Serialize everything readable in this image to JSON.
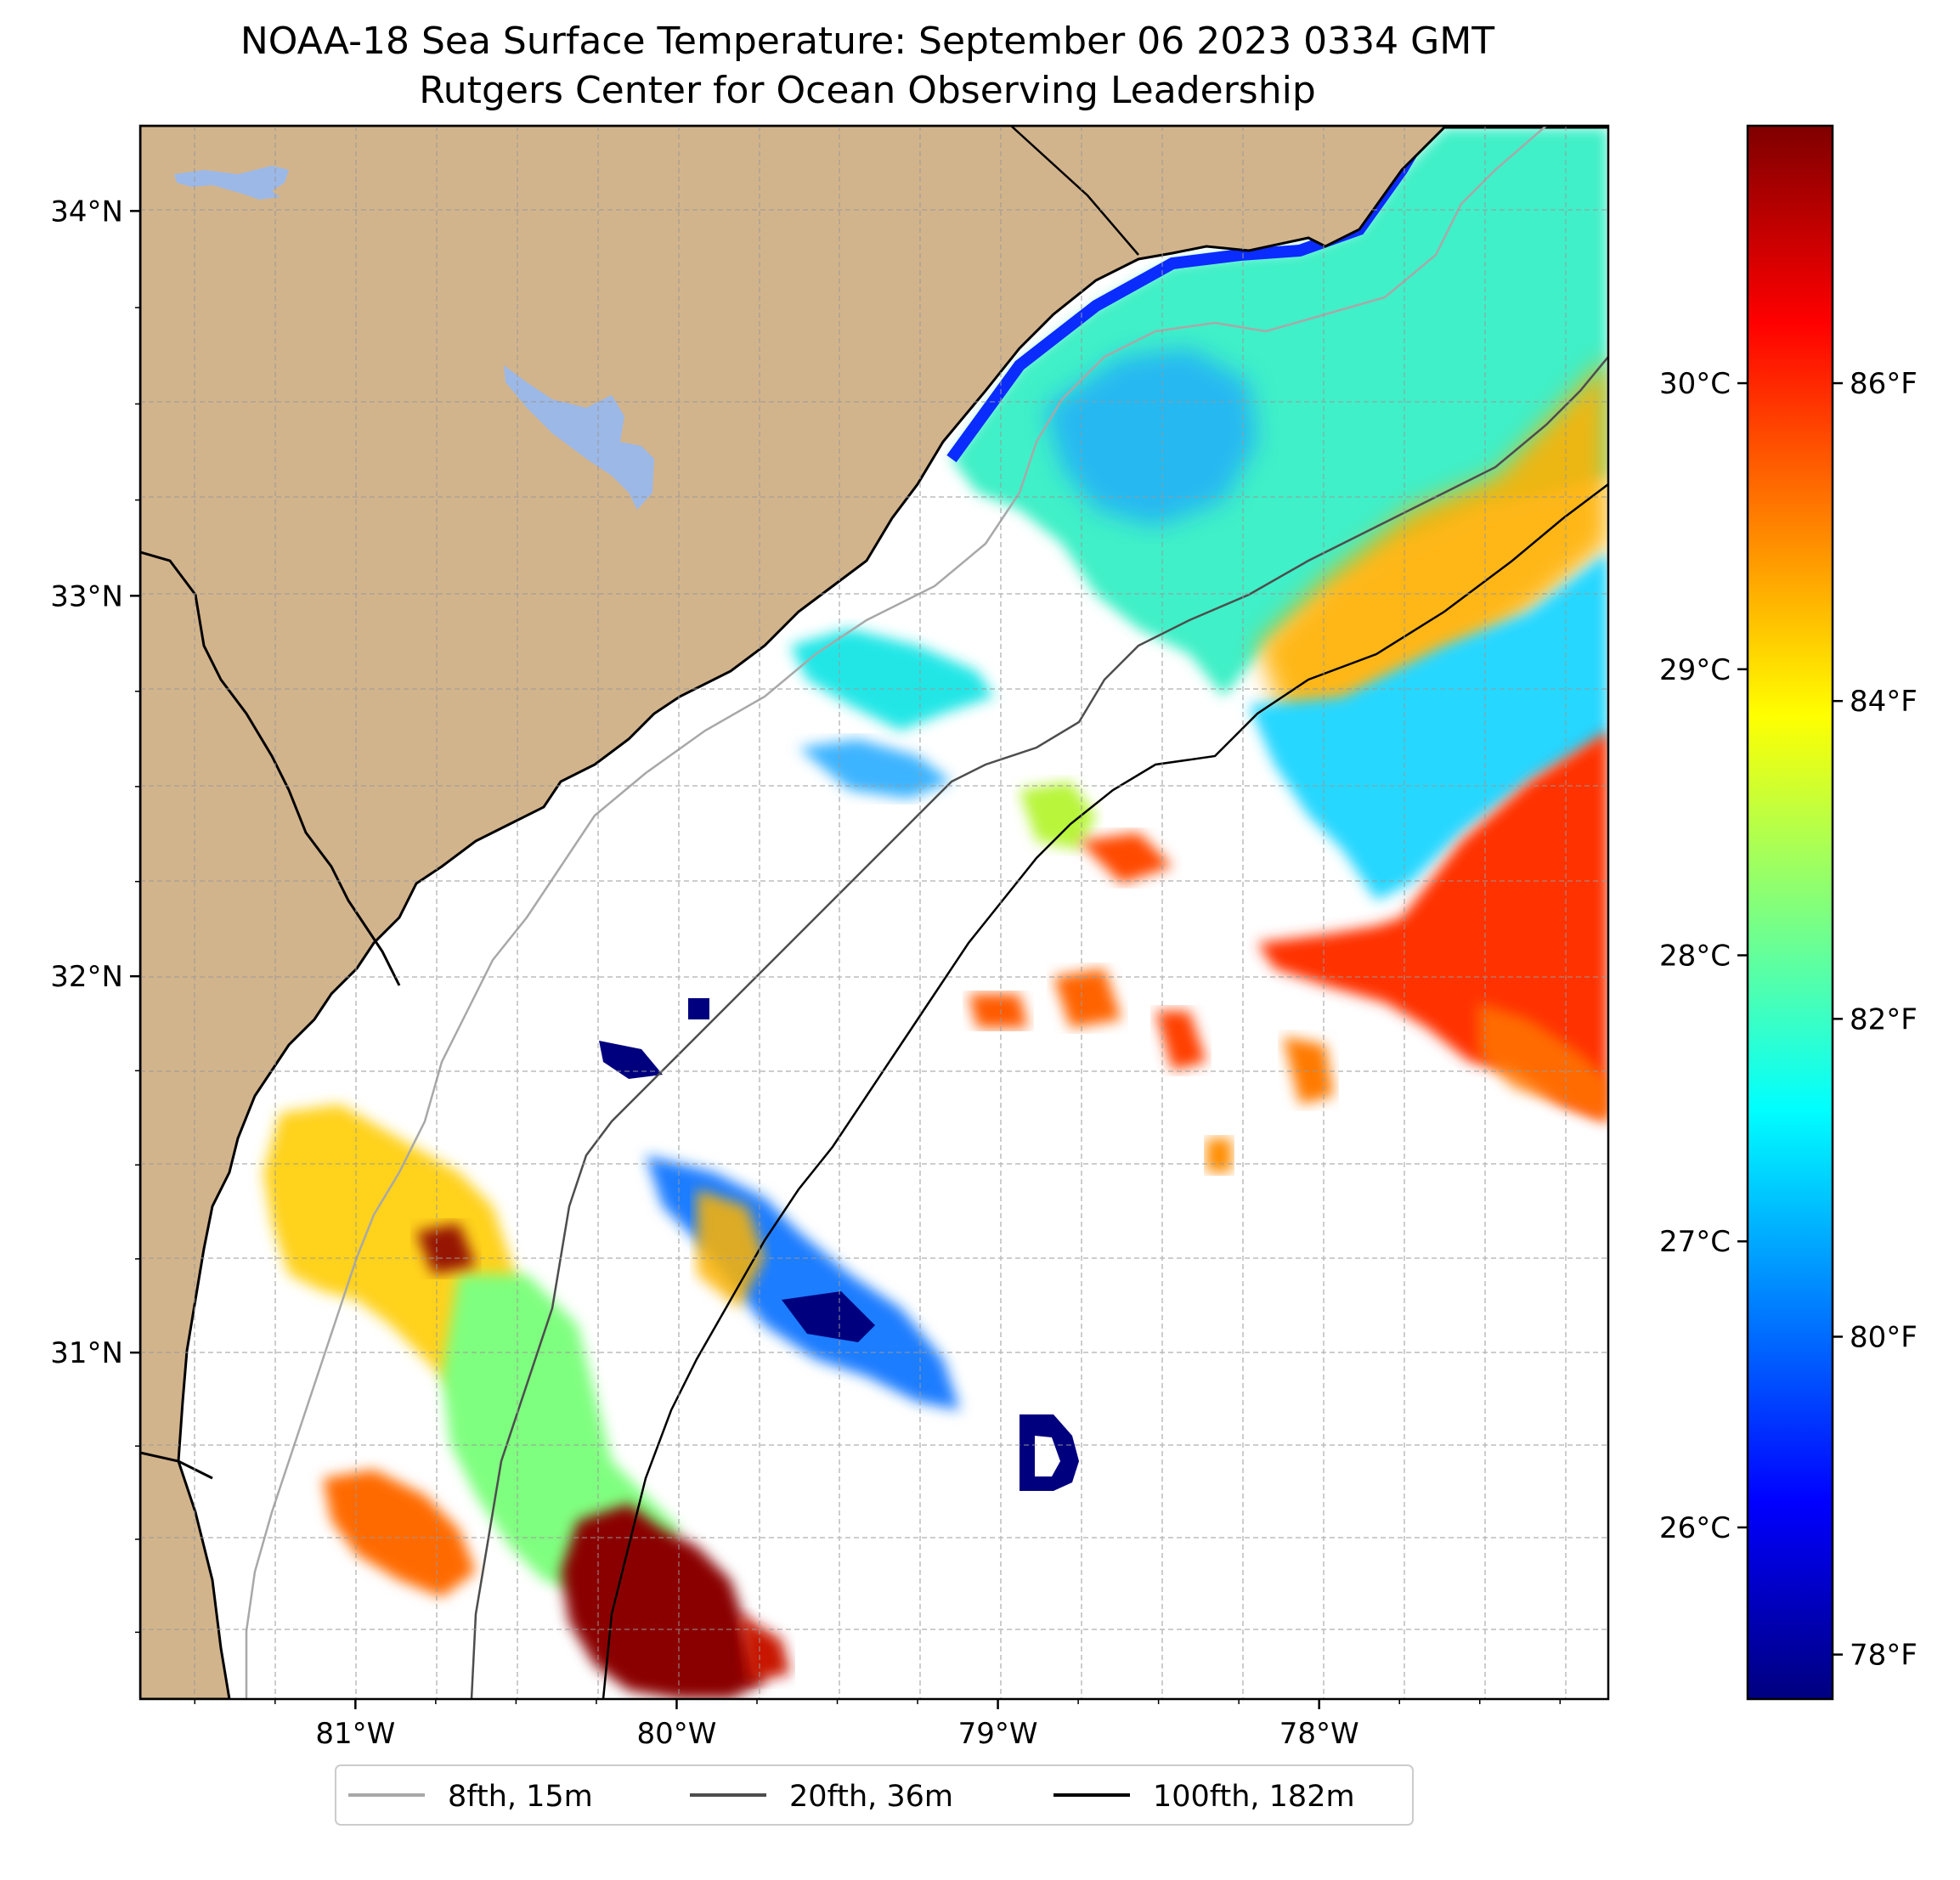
{
  "title": {
    "line1": "NOAA-18 Sea Surface Temperature: September 06 2023 0334 GMT",
    "line2": "Rutgers Center for Ocean Observing Leadership"
  },
  "map": {
    "lon_range": [
      -81.67,
      -77.1
    ],
    "lat_range": [
      30.07,
      34.22
    ],
    "lat_ticks": [
      {
        "value": 34,
        "label": "34°N"
      },
      {
        "value": 33,
        "label": "33°N"
      },
      {
        "value": 32,
        "label": "32°N"
      },
      {
        "value": 31,
        "label": "31°N"
      }
    ],
    "lon_ticks": [
      {
        "value": -81,
        "label": "81°W"
      },
      {
        "value": -80,
        "label": "80°W"
      },
      {
        "value": -79,
        "label": "79°W"
      },
      {
        "value": -78,
        "label": "78°W"
      }
    ],
    "land_color": "#d2b48c",
    "water_color": "#9cb8e6",
    "no_data_color": "#ffffff",
    "grid_style": "dashed gray"
  },
  "colorbar": {
    "celsius_range": [
      25.4,
      30.9
    ],
    "celsius_ticks": [
      {
        "value": 30,
        "label": "30°C"
      },
      {
        "value": 29,
        "label": "29°C"
      },
      {
        "value": 28,
        "label": "28°C"
      },
      {
        "value": 27,
        "label": "27°C"
      },
      {
        "value": 26,
        "label": "26°C"
      }
    ],
    "fahrenheit_ticks": [
      {
        "value": 86,
        "label": "86°F"
      },
      {
        "value": 84,
        "label": "84°F"
      },
      {
        "value": 82,
        "label": "82°F"
      },
      {
        "value": 80,
        "label": "80°F"
      },
      {
        "value": 78,
        "label": "78°F"
      }
    ],
    "colormap": "jet",
    "colormap_stops": [
      "#00007f",
      "#0000ff",
      "#007fff",
      "#00ffff",
      "#7fff7f",
      "#ffff00",
      "#ff7f00",
      "#ff0000",
      "#7f0000"
    ]
  },
  "legend": {
    "position": "bottom-center",
    "items": [
      {
        "label": "8fth, 15m",
        "color": "#a8a8a8"
      },
      {
        "label": "20fth, 36m",
        "color": "#4d4d4d"
      },
      {
        "label": "100fth, 182m",
        "color": "#000000"
      }
    ]
  }
}
